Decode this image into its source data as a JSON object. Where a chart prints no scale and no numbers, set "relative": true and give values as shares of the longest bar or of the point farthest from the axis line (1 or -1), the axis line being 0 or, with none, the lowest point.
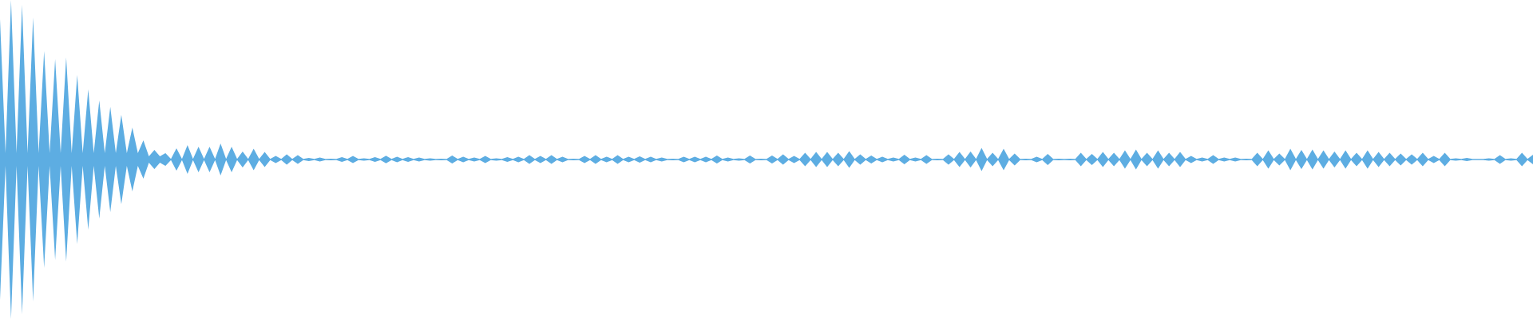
{
  "chart_data": {
    "type": "area",
    "relative": true,
    "categories": [
      null,
      null,
      null,
      null,
      null,
      null,
      null,
      null,
      null,
      null,
      null,
      null,
      null,
      null,
      null,
      null,
      null,
      null,
      null,
      null,
      null,
      null,
      null,
      null,
      null,
      null,
      null,
      null,
      null,
      null,
      null,
      null,
      null,
      null,
      null,
      null,
      null,
      null,
      null,
      null,
      null,
      null,
      null,
      null,
      null,
      null,
      null,
      null,
      null,
      null,
      null,
      null,
      null,
      null,
      null,
      null,
      null,
      null,
      null,
      null,
      null,
      null,
      null,
      null,
      null,
      null,
      null,
      null,
      null,
      null,
      null,
      null,
      null,
      null,
      null,
      null,
      null,
      null,
      null,
      null,
      null,
      null,
      null,
      null,
      null,
      null,
      null,
      null,
      null,
      null,
      null,
      null,
      null,
      null,
      null,
      null,
      null,
      null,
      null,
      null,
      null,
      null,
      null,
      null,
      null,
      null,
      null,
      null,
      null,
      null,
      null,
      null,
      null,
      null,
      null,
      null,
      null,
      null,
      null,
      null,
      null,
      null,
      null,
      null,
      null,
      null,
      null,
      null,
      null,
      null,
      null,
      null,
      null,
      null,
      null,
      null,
      null,
      null,
      null,
      null,
      null,
      null,
      null,
      null,
      null,
      null,
      null,
      null,
      null,
      null,
      null,
      null,
      null,
      null,
      null,
      null,
      null,
      null,
      null,
      null,
      null,
      null,
      null,
      null,
      null,
      null,
      null,
      null,
      null,
      null,
      null,
      null,
      null,
      null,
      null,
      null,
      null,
      null,
      null,
      null,
      null,
      null,
      null,
      null,
      null,
      null,
      null,
      null,
      null,
      null,
      null,
      null,
      null,
      null,
      null,
      null,
      null,
      null,
      null,
      null,
      null,
      null,
      null,
      null,
      null,
      null,
      null,
      null,
      null,
      null,
      null,
      null,
      null,
      null,
      null,
      null,
      null,
      null,
      null,
      null,
      null,
      null,
      null,
      null,
      null,
      null,
      null,
      null,
      null,
      null,
      null,
      null,
      null,
      null,
      null,
      null,
      null,
      null,
      null,
      null,
      null,
      null,
      null,
      null,
      null,
      null,
      null,
      null,
      null,
      null,
      null,
      null,
      null,
      null,
      null,
      null,
      null,
      null,
      null,
      null,
      null,
      null,
      null,
      null,
      null,
      null,
      null,
      null,
      null,
      null,
      null,
      null,
      null,
      null,
      null,
      null,
      null,
      null,
      null
    ],
    "series": [
      {
        "color": "#5dade2",
        "values": [
          0.88,
          0.04,
          1.0,
          0.04,
          0.97,
          0.04,
          0.89,
          0.04,
          0.68,
          0.04,
          0.63,
          0.04,
          0.64,
          0.04,
          0.53,
          0.04,
          0.44,
          0.04,
          0.37,
          0.04,
          0.33,
          0.04,
          0.28,
          0.04,
          0.2,
          0.04,
          0.12,
          0.02,
          0.06,
          0.02,
          0.04,
          0.004,
          0.07,
          0.004,
          0.09,
          0.004,
          0.08,
          0.004,
          0.08,
          0.004,
          0.1,
          0.004,
          0.08,
          0.004,
          0.05,
          0.004,
          0.067,
          0.004,
          0.047,
          0.004,
          0.022,
          0.004,
          0.033,
          0.004,
          0.028,
          0.004,
          0.01,
          0.004,
          0.012,
          0.004,
          0.005,
          0.004,
          0.015,
          0.004,
          0.022,
          0.004,
          0.007,
          0.004,
          0.015,
          0.004,
          0.024,
          0.004,
          0.017,
          0.004,
          0.015,
          0.004,
          0.013,
          0.004,
          0.008,
          0.004,
          0.005,
          0.004,
          0.025,
          0.004,
          0.018,
          0.004,
          0.012,
          0.004,
          0.022,
          0.004,
          0.008,
          0.004,
          0.015,
          0.004,
          0.017,
          0.004,
          0.028,
          0.004,
          0.022,
          0.004,
          0.028,
          0.004,
          0.018,
          0.004,
          0.005,
          0.004,
          0.022,
          0.004,
          0.028,
          0.004,
          0.018,
          0.004,
          0.028,
          0.004,
          0.017,
          0.004,
          0.02,
          0.004,
          0.018,
          0.004,
          0.013,
          0.004,
          0.005,
          0.004,
          0.018,
          0.004,
          0.017,
          0.004,
          0.017,
          0.004,
          0.025,
          0.004,
          0.013,
          0.004,
          0.008,
          0.004,
          0.025,
          0.004,
          0.005,
          0.004,
          0.025,
          0.004,
          0.033,
          0.004,
          0.022,
          0.004,
          0.043,
          0.004,
          0.047,
          0.004,
          0.047,
          0.004,
          0.043,
          0.004,
          0.052,
          0.004,
          0.033,
          0.004,
          0.025,
          0.004,
          0.017,
          0.004,
          0.013,
          0.004,
          0.03,
          0.004,
          0.013,
          0.004,
          0.027,
          0.004,
          0.005,
          0.004,
          0.033,
          0.004,
          0.047,
          0.004,
          0.05,
          0.004,
          0.072,
          0.004,
          0.043,
          0.004,
          0.067,
          0.004,
          0.038,
          0.004,
          0.005,
          0.004,
          0.017,
          0.004,
          0.035,
          0.004,
          0.005,
          0.004,
          0.005,
          0.004,
          0.042,
          0.004,
          0.035,
          0.004,
          0.047,
          0.004,
          0.042,
          0.004,
          0.058,
          0.004,
          0.063,
          0.004,
          0.042,
          0.004,
          0.058,
          0.004,
          0.042,
          0.004,
          0.047,
          0.004,
          0.022,
          0.004,
          0.013,
          0.004,
          0.027,
          0.004,
          0.012,
          0.004,
          0.012,
          0.004,
          0.005,
          0.004,
          0.043,
          0.004,
          0.058,
          0.004,
          0.038,
          0.004,
          0.068,
          0.004,
          0.06,
          0.004,
          0.063,
          0.004,
          0.058,
          0.004,
          0.05,
          0.004,
          0.058,
          0.004,
          0.042,
          0.004,
          0.058,
          0.004,
          0.047,
          0.004,
          0.042,
          0.004,
          0.038,
          0.004,
          0.033,
          0.004,
          0.043,
          0.004,
          0.022,
          0.004,
          0.043,
          0.004,
          0.008,
          0.004,
          0.01,
          0.004,
          0.004,
          0.004,
          0.008,
          0.004,
          0.027,
          0.004,
          0.008,
          0.004,
          0.042,
          0.004,
          0.03
        ]
      }
    ]
  }
}
